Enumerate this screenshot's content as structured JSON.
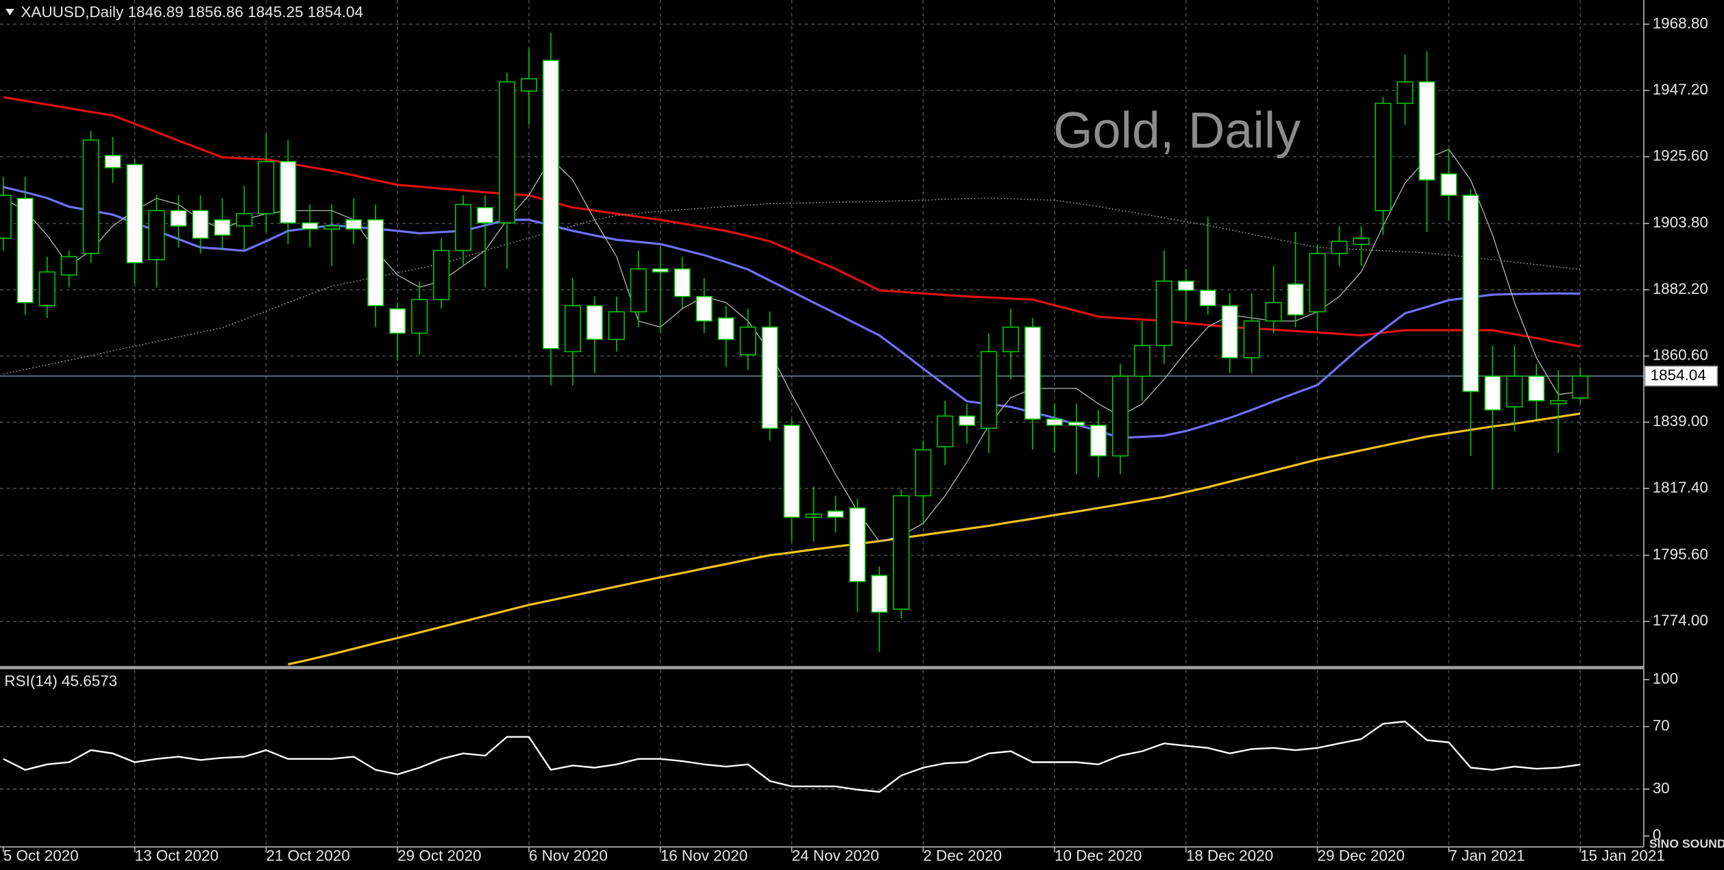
{
  "chart_data": [
    {
      "type": "candlestick",
      "title": "XAUUSD,Daily  1846.89 1856.86 1845.25 1854.04",
      "annotation": "Gold, Daily",
      "watermark": "SINO SOUND",
      "categories": [
        "5 Oct 2020",
        null,
        null,
        null,
        null,
        null,
        "13 Oct 2020",
        null,
        null,
        null,
        null,
        null,
        "21 Oct 2020",
        null,
        null,
        null,
        null,
        null,
        "29 Oct 2020",
        null,
        null,
        null,
        null,
        null,
        "6 Nov 2020",
        null,
        null,
        null,
        null,
        null,
        "16 Nov 2020",
        null,
        null,
        null,
        null,
        null,
        "24 Nov 2020",
        null,
        null,
        null,
        null,
        null,
        "2 Dec 2020",
        null,
        null,
        null,
        null,
        null,
        "10 Dec 2020",
        null,
        null,
        null,
        null,
        null,
        "18 Dec 2020",
        null,
        null,
        null,
        null,
        null,
        "29 Dec 2020",
        null,
        null,
        null,
        null,
        null,
        "7 Jan 2021",
        null,
        null,
        null,
        null,
        null,
        "15 Jan 2021"
      ],
      "open": [
        1899,
        1912,
        1877,
        1887,
        1894,
        1926,
        1923,
        1892,
        1908,
        1908,
        1905,
        1903,
        1907,
        1924,
        1904,
        1902,
        1905,
        1905,
        1876,
        1868,
        1879,
        1895,
        1909,
        1904,
        1947,
        1957,
        1862,
        1877,
        1866,
        1875,
        1889,
        1889,
        1880,
        1873,
        1861,
        1870,
        1838,
        1808,
        1810,
        1811,
        1789,
        1778,
        1815,
        1831,
        1841,
        1837,
        1862,
        1870,
        1840,
        1839,
        1838,
        1828,
        1854,
        1864,
        1885,
        1882,
        1877,
        1860,
        1872,
        1884,
        1875,
        1894,
        1897,
        1908,
        1943,
        1950,
        1920,
        1913,
        1854,
        1844,
        1854,
        1845,
        1846.89
      ],
      "high": [
        1919,
        1919,
        1893,
        1895,
        1934,
        1932,
        1925,
        1913,
        1913,
        1913,
        1912,
        1916,
        1933,
        1931,
        1910,
        1910,
        1912,
        1910,
        1878,
        1885,
        1899,
        1913,
        1913,
        1953,
        1961,
        1966,
        1886,
        1880,
        1880,
        1895,
        1896,
        1893,
        1886,
        1877,
        1876,
        1875,
        1840,
        1818,
        1815,
        1814,
        1792,
        1817,
        1833,
        1846,
        1845,
        1868,
        1876,
        1873,
        1845,
        1845,
        1843,
        1858,
        1872,
        1895,
        1889,
        1906,
        1881,
        1881,
        1890,
        1901,
        1897,
        1903,
        1903,
        1945,
        1959,
        1960,
        1928,
        1915,
        1864,
        1864,
        1858,
        1856,
        1856.86
      ],
      "low": [
        1895,
        1874,
        1873,
        1883,
        1891,
        1917,
        1884,
        1883,
        1896,
        1894,
        1895,
        1895,
        1901,
        1897,
        1896,
        1890,
        1897,
        1870,
        1859,
        1861,
        1876,
        1890,
        1883,
        1889,
        1936,
        1851,
        1851,
        1855,
        1862,
        1870,
        1868,
        1876,
        1868,
        1857,
        1856,
        1833,
        1800,
        1800,
        1803,
        1777,
        1764,
        1775,
        1806,
        1825,
        1832,
        1829,
        1853,
        1830,
        1829,
        1822,
        1821,
        1822,
        1846,
        1858,
        1872,
        1874,
        1855,
        1855,
        1868,
        1870,
        1869,
        1890,
        1890,
        1900,
        1936,
        1901,
        1905,
        1828,
        1817,
        1836,
        1840,
        1829,
        1845.25
      ],
      "close": [
        1913,
        1878,
        1888,
        1893,
        1931,
        1922,
        1891,
        1908,
        1903,
        1899,
        1900,
        1907,
        1924,
        1904,
        1902,
        1903,
        1902,
        1877,
        1868,
        1879,
        1895,
        1910,
        1904,
        1950,
        1951,
        1863,
        1877,
        1866,
        1875,
        1889,
        1888,
        1880,
        1872,
        1866,
        1870,
        1837,
        1808,
        1809,
        1808,
        1787,
        1777,
        1815,
        1830,
        1841,
        1838,
        1862,
        1870,
        1840,
        1838,
        1838,
        1828,
        1854,
        1864,
        1885,
        1882,
        1877,
        1860,
        1872,
        1878,
        1874,
        1894,
        1898,
        1899,
        1943,
        1950,
        1918,
        1913,
        1849,
        1843,
        1854,
        1846,
        1846,
        1854.04
      ],
      "up_color": "#00c800",
      "down_color": "#ffffff",
      "overlays": [
        {
          "color": "#e01010",
          "style": "solid",
          "values": [
            1945.0,
            1943.8,
            1942.6,
            1941.4,
            1940.2,
            1939.0,
            1936.3,
            1933.6,
            1930.8,
            1928.1,
            1925.4,
            1925.0,
            1924.7,
            1923.5,
            1922.2,
            1921.0,
            1919.5,
            1917.9,
            1916.4,
            1915.8,
            1915.2,
            1914.6,
            1914.0,
            1913.5,
            1913.0,
            1911.0,
            1909.0,
            1908.0,
            1907.0,
            1906.0,
            1905.0,
            1903.8,
            1902.6,
            1901.4,
            1899.7,
            1898.0,
            1895.0,
            1892.0,
            1889.0,
            1885.5,
            1882.0,
            1881.5,
            1881.0,
            1880.5,
            1880.0,
            1879.7,
            1879.3,
            1879.0,
            1877.1,
            1875.3,
            1873.4,
            1872.9,
            1872.5,
            1872.0,
            1871.3,
            1870.7,
            1870.0,
            1869.6,
            1869.2,
            1868.7,
            1868.3,
            1867.8,
            1867.3,
            1868.2,
            1869.0,
            1869.0,
            1869.0,
            1869.0,
            1869.0,
            1867.7,
            1866.4,
            1865.0,
            1863.7
          ]
        },
        {
          "color": "#7070ff",
          "style": "solid",
          "values": [
            1915.7,
            1914.0,
            1912.1,
            1909.3,
            1908.0,
            1906.7,
            1904.0,
            1901.4,
            1898.7,
            1896.0,
            1895.5,
            1894.9,
            1898.0,
            1901.4,
            1902.3,
            1903.2,
            1902.7,
            1902.1,
            1901.4,
            1900.6,
            1901.0,
            1901.4,
            1903.2,
            1905.0,
            1905.0,
            1903.2,
            1901.4,
            1899.9,
            1898.5,
            1897.8,
            1897.1,
            1895.3,
            1893.5,
            1891.2,
            1888.8,
            1885.2,
            1881.6,
            1878.0,
            1874.5,
            1870.9,
            1867.3,
            1862.0,
            1856.5,
            1851.1,
            1845.8,
            1844.9,
            1844.0,
            1842.2,
            1840.4,
            1838.2,
            1836.1,
            1833.9,
            1834.2,
            1834.6,
            1836.1,
            1838.2,
            1840.4,
            1843.0,
            1845.8,
            1848.5,
            1851.1,
            1857.4,
            1863.7,
            1869.1,
            1874.5,
            1876.6,
            1878.8,
            1879.7,
            1880.6,
            1880.8,
            1880.9,
            1881.0,
            1880.9
          ]
        },
        {
          "color": "#f0c020",
          "style": "solid",
          "values": [
            null,
            null,
            null,
            null,
            null,
            null,
            null,
            null,
            null,
            null,
            null,
            null,
            null,
            1760.0,
            1761.6,
            1763.3,
            1765.1,
            1766.9,
            1768.6,
            1770.4,
            1772.2,
            1774.0,
            1775.8,
            1777.6,
            1779.4,
            1780.9,
            1782.4,
            1783.9,
            1785.4,
            1786.9,
            1788.4,
            1789.8,
            1791.3,
            1792.7,
            1794.2,
            1795.6,
            1796.5,
            1797.5,
            1798.4,
            1799.3,
            1800.2,
            1801.2,
            1802.2,
            1803.2,
            1804.2,
            1805.2,
            1806.4,
            1807.5,
            1808.7,
            1809.8,
            1811.0,
            1812.2,
            1813.4,
            1814.6,
            1816.2,
            1817.8,
            1819.6,
            1821.4,
            1823.2,
            1825.0,
            1826.8,
            1828.3,
            1829.8,
            1831.3,
            1832.8,
            1834.3,
            1835.4,
            1836.5,
            1837.6,
            1838.5,
            1839.6,
            1840.7,
            1841.8
          ]
        },
        {
          "color": "#9a9a9a",
          "style": "dotted",
          "values": [
            1854.7,
            1856.2,
            1857.7,
            1859.2,
            1860.7,
            1862.3,
            1863.8,
            1865.3,
            1866.8,
            1868.3,
            1869.8,
            1872.5,
            1875.2,
            1878.0,
            1880.7,
            1883.4,
            1884.8,
            1886.3,
            1887.7,
            1889.2,
            1890.6,
            1892.8,
            1894.9,
            1897.1,
            1899.1,
            1901.0,
            1903.0,
            1905.0,
            1906.4,
            1907.1,
            1907.8,
            1908.3,
            1908.8,
            1909.3,
            1909.8,
            1910.3,
            1910.4,
            1910.6,
            1910.7,
            1910.9,
            1911.0,
            1911.2,
            1911.4,
            1911.7,
            1911.9,
            1912.1,
            1911.9,
            1911.6,
            1911.4,
            1910.4,
            1909.3,
            1908.1,
            1906.9,
            1905.7,
            1904.4,
            1903.2,
            1901.8,
            1900.3,
            1898.9,
            1897.4,
            1896.0,
            1895.6,
            1895.3,
            1894.9,
            1894.6,
            1894.2,
            1893.5,
            1892.8,
            1892.0,
            1891.2,
            1890.4,
            1889.6,
            1888.8
          ]
        },
        {
          "color": "#b8b8b8",
          "style": "thin",
          "values": [
            1912,
            1908,
            1900,
            1890,
            1895,
            1903,
            1908,
            1912,
            1910,
            1905,
            1902,
            1905,
            1907,
            1908,
            1908,
            1908,
            1905,
            1895,
            1887,
            1883,
            1885,
            1890,
            1895,
            1905,
            1913,
            1925,
            1918,
            1905,
            1893,
            1872,
            1870,
            1876,
            1880,
            1878,
            1872,
            1862,
            1848,
            1835,
            1822,
            1810,
            1800,
            1802,
            1806,
            1815,
            1826,
            1838,
            1847,
            1850,
            1850,
            1850,
            1845,
            1841,
            1845,
            1853,
            1862,
            1870,
            1874,
            1873,
            1872,
            1872,
            1875,
            1880,
            1888,
            1903,
            1917,
            1925,
            1928,
            1918,
            1900,
            1878,
            1860,
            1848,
            1849
          ]
        }
      ],
      "last_price": 1854.04,
      "ylim": [
        1759.3,
        1976.7
      ],
      "yticks": [
        {
          "value": 1968.8,
          "label": "1968.80"
        },
        {
          "value": 1947.2,
          "label": "1947.20"
        },
        {
          "value": 1925.6,
          "label": "1925.60"
        },
        {
          "value": 1903.8,
          "label": "1903.80"
        },
        {
          "value": 1882.2,
          "label": "1882.20"
        },
        {
          "value": 1860.6,
          "label": "1860.60"
        },
        {
          "value": 1839.0,
          "label": "1839.00"
        },
        {
          "value": 1817.4,
          "label": "1817.40"
        },
        {
          "value": 1795.6,
          "label": "1795.60"
        },
        {
          "value": 1774.0,
          "label": "1774.00"
        }
      ],
      "grid": true
    },
    {
      "type": "line",
      "title": "RSI(14) 45.6573",
      "color": "#ffffff",
      "values": [
        49.3,
        42.3,
        45.8,
        47.2,
        54.9,
        52.8,
        47.2,
        49.3,
        50.7,
        48.6,
        50.0,
        50.7,
        54.9,
        49.3,
        49.3,
        49.3,
        50.7,
        42.3,
        39.4,
        43.7,
        49.3,
        52.8,
        51.4,
        63.4,
        63.4,
        42.3,
        45.1,
        43.7,
        45.8,
        49.3,
        49.3,
        47.9,
        45.8,
        44.4,
        45.8,
        35.2,
        31.7,
        31.7,
        31.7,
        29.6,
        28.2,
        38.7,
        43.7,
        46.5,
        47.2,
        52.8,
        54.2,
        47.2,
        47.2,
        47.2,
        45.8,
        51.4,
        54.2,
        59.2,
        57.7,
        56.3,
        52.8,
        55.6,
        56.3,
        54.9,
        56.3,
        59.2,
        62.0,
        71.8,
        73.2,
        61.3,
        59.9,
        43.7,
        42.3,
        44.4,
        43.0,
        43.7,
        45.66
      ],
      "ylim": [
        -7.0,
        107.7
      ],
      "yticks": [
        100,
        70,
        30,
        0
      ],
      "levels": [
        70,
        30
      ]
    }
  ]
}
